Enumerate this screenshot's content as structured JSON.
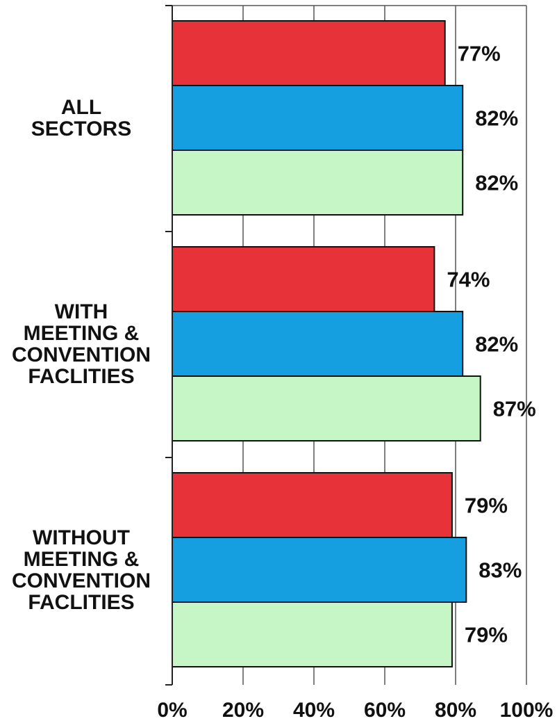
{
  "chart_data": {
    "type": "bar",
    "orientation": "horizontal",
    "categories": [
      [
        "ALL",
        "SECTORS"
      ],
      [
        "WITH",
        "MEETING &",
        "CONVENTION",
        "FACLITIES"
      ],
      [
        "WITHOUT",
        "MEETING &",
        "CONVENTION",
        "FACLITIES"
      ]
    ],
    "series": [
      {
        "values": [
          77,
          74,
          79
        ],
        "labels": [
          "77%",
          "74%",
          "79%"
        ],
        "color": "#e8323a"
      },
      {
        "values": [
          82,
          82,
          83
        ],
        "labels": [
          "82%",
          "82%",
          "83%"
        ],
        "color": "#169fe0"
      },
      {
        "values": [
          82,
          87,
          79
        ],
        "labels": [
          "82%",
          "87%",
          "79%"
        ],
        "color": "#c6f5c6"
      }
    ],
    "xlim": [
      0,
      100
    ],
    "x_ticks": [
      0,
      20,
      40,
      60,
      80,
      100
    ],
    "x_tick_labels": [
      "0%",
      "20%",
      "40%",
      "60%",
      "80%",
      "100%"
    ],
    "grid": "vertical",
    "legend": "none"
  }
}
